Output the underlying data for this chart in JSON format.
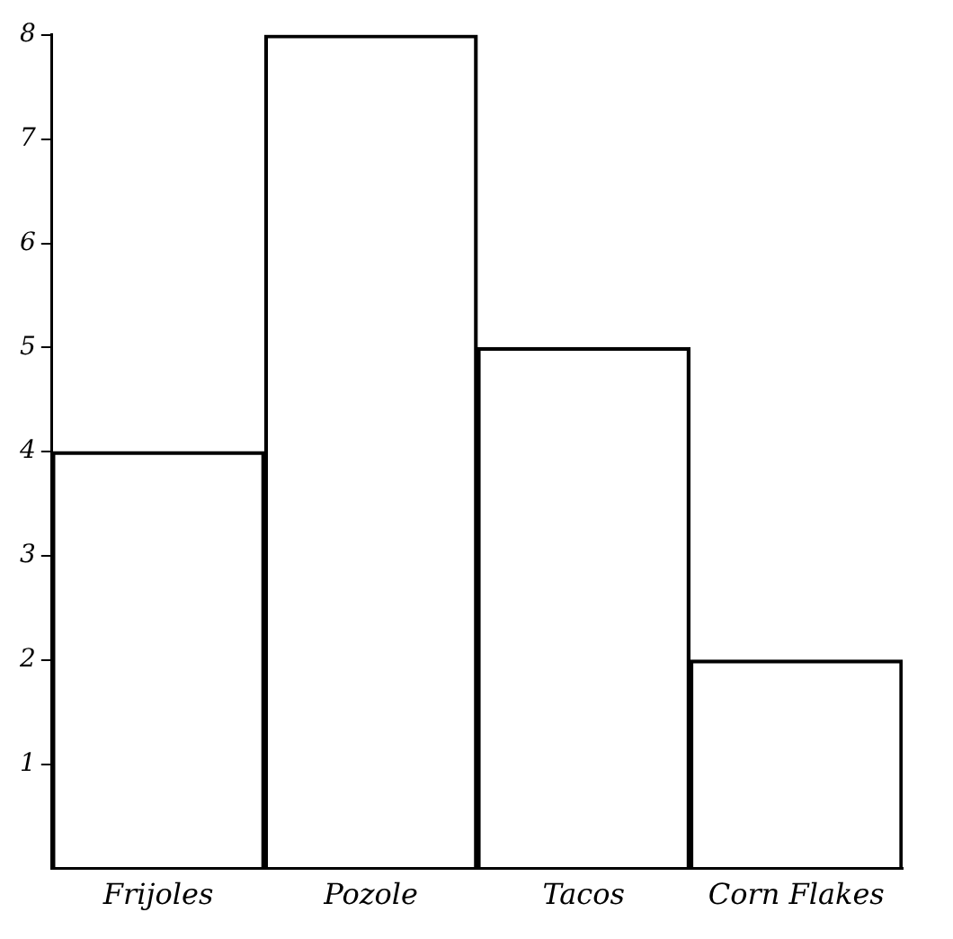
{
  "chart_data": {
    "type": "bar",
    "categories": [
      "Frijoles",
      "Pozole",
      "Tacos",
      "Corn Flakes"
    ],
    "values": [
      4,
      8,
      5,
      2
    ],
    "color": "#000000",
    "ylim": [
      0,
      8
    ],
    "yticks": [
      1,
      2,
      3,
      4,
      5,
      6,
      7,
      8
    ],
    "grid": false,
    "legend": false
  }
}
